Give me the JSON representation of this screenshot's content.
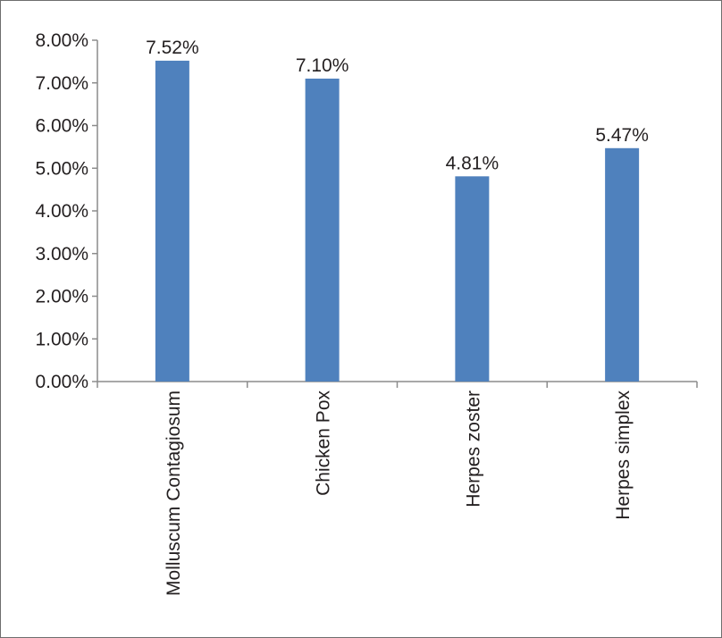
{
  "chart_data": {
    "type": "bar",
    "categories": [
      "Molluscum Contagiosum",
      "Chicken Pox",
      "Herpes zoster",
      "Herpes simplex"
    ],
    "values": [
      7.52,
      7.1,
      4.81,
      5.47
    ],
    "data_labels": [
      "7.52%",
      "7.10%",
      "4.81%",
      "5.47%"
    ],
    "ylim": [
      0,
      8
    ],
    "y_ticks": [
      0,
      1,
      2,
      3,
      4,
      5,
      6,
      7,
      8
    ],
    "y_tick_labels": [
      "0.00%",
      "1.00%",
      "2.00%",
      "3.00%",
      "4.00%",
      "5.00%",
      "6.00%",
      "7.00%",
      "8.00%"
    ],
    "grid": false,
    "legend": "none",
    "colors": {
      "bar": "#4f81bd",
      "axis": "#8c8c8c",
      "text": "#231f20"
    }
  }
}
